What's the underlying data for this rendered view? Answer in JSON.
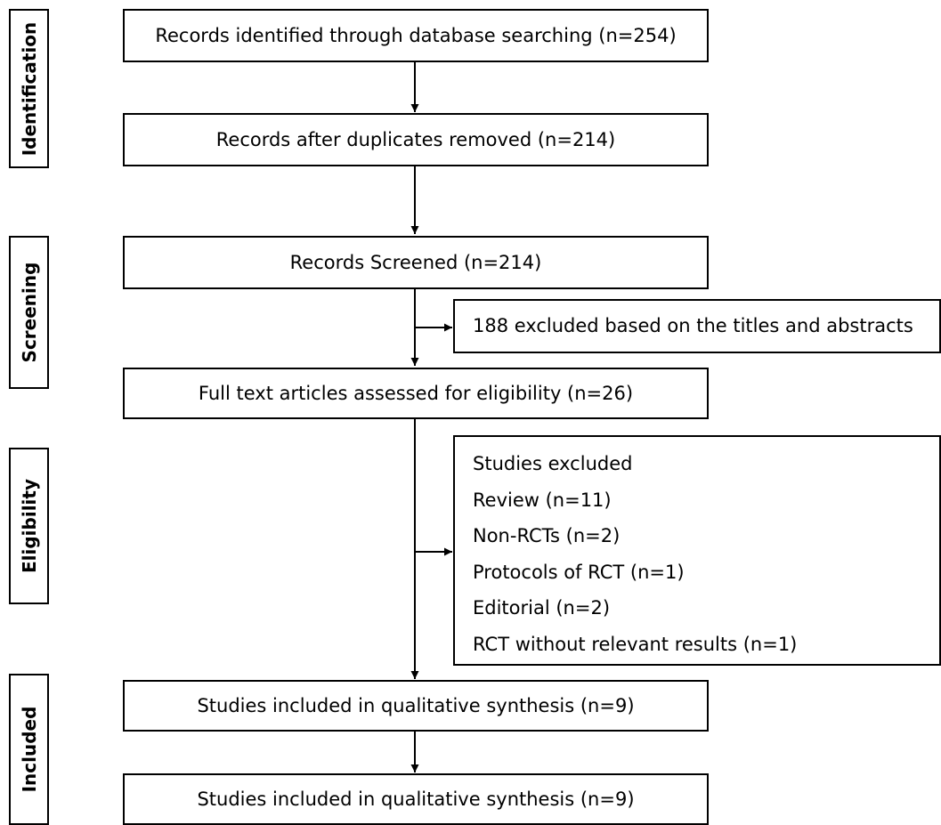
{
  "stages": {
    "identification": "Identification",
    "screening": "Screening",
    "eligibility": "Eligibility",
    "included": "Included"
  },
  "boxes": {
    "identified": "Records identified through database searching (n=254)",
    "duplicates_removed": "Records after duplicates removed (n=214)",
    "screened": "Records Screened (n=214)",
    "excluded_titles": "188 excluded based on the titles and abstracts",
    "fulltext": "Full text articles assessed for eligibility (n=26)",
    "qualitative_1": "Studies included in qualitative synthesis (n=9)",
    "qualitative_2": "Studies included in qualitative synthesis (n=9)"
  },
  "exclusions": {
    "heading": "Studies excluded",
    "items": [
      "Review (n=11)",
      "Non-RCTs (n=2)",
      "Protocols of RCT (n=1)",
      "Editorial (n=2)",
      "RCT without relevant results (n=1)"
    ]
  }
}
